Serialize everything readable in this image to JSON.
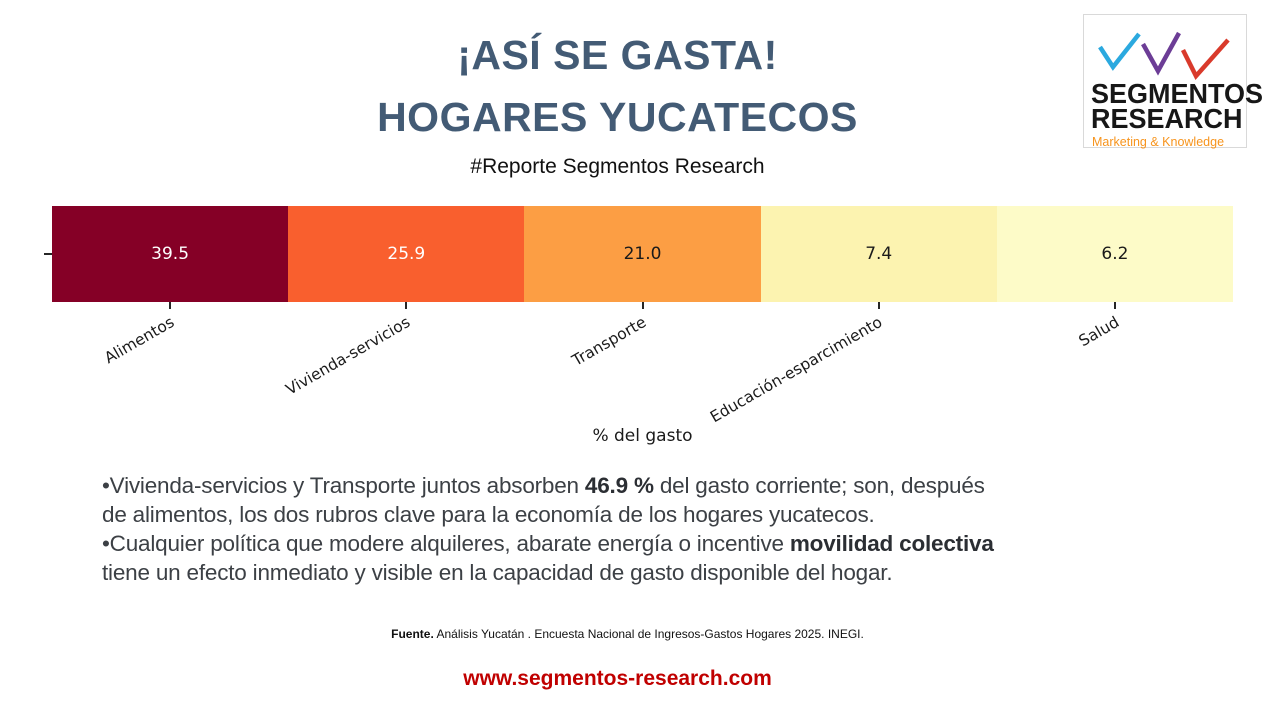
{
  "header": {
    "title_line1": "¡ASÍ SE GASTA!",
    "title_line2": "HOGARES YUCATECOS",
    "subtitle": "#Reporte Segmentos Research",
    "title_color": "#435B75"
  },
  "logo": {
    "name_line1": "SEGMENTOS",
    "name_line2": "RESEARCH",
    "tagline": "Marketing & Knowledge",
    "check_colors": [
      "#2BA9DF",
      "#6C3D96",
      "#D93A2B"
    ],
    "tagline_color": "#F7941D"
  },
  "chart_data": {
    "type": "bar",
    "orientation": "horizontal-stacked-equal-width-segments",
    "categories": [
      "Alimentos",
      "Vivienda-servicios",
      "Transporte",
      "Educación-esparcimiento",
      "Salud"
    ],
    "values": [
      39.5,
      25.9,
      21.0,
      7.4,
      6.2
    ],
    "value_labels": [
      "39.5",
      "25.9",
      "21.0",
      "7.4",
      "6.2"
    ],
    "segment_colors": [
      "#850026",
      "#F95F2E",
      "#FC9E44",
      "#FCF3B0",
      "#FDFBC8"
    ],
    "value_text_colors": [
      "#FFFFFF",
      "#FFFFFF",
      "#1A1A1A",
      "#1A1A1A",
      "#1A1A1A"
    ],
    "title": "",
    "xlabel": "% del gasto",
    "ylabel": "",
    "legend": "none",
    "grid": false
  },
  "body": {
    "lines": [
      [
        {
          "t": "•Vivienda-servicios y Transporte juntos absorben ",
          "b": false
        },
        {
          "t": "46.9 %",
          "b": true
        },
        {
          "t": " del gasto corriente; son, después",
          "b": false
        }
      ],
      [
        {
          "t": "de alimentos, los dos rubros clave para la economía de los hogares yucatecos.",
          "b": false
        }
      ],
      [
        {
          "t": "•Cualquier política que modere alquileres, abarate energía o incentive ",
          "b": false
        },
        {
          "t": "movilidad colectiva",
          "b": true
        }
      ],
      [
        {
          "t": "tiene un efecto inmediato y visible en la capacidad de gasto disponible del hogar.",
          "b": false
        }
      ]
    ]
  },
  "footer": {
    "source_bold": "Fuente.",
    "source_text": " Análisis Yucatán . Encuesta Nacional de Ingresos-Gastos Hogares 2025. INEGI.",
    "website": "www.segmentos-research.com",
    "website_color": "#C00000"
  }
}
